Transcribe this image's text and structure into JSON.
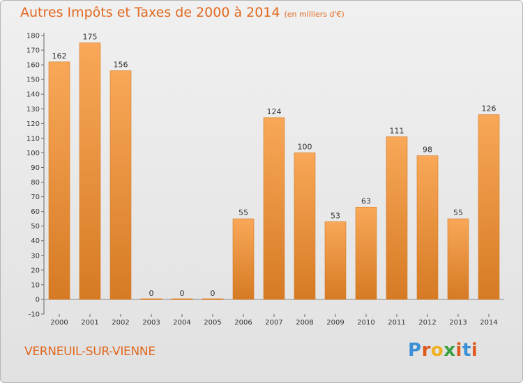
{
  "header": {
    "title": "Autres Impôts et Taxes de 2000 à 2014",
    "unit": "(en milliers d'€)"
  },
  "footer": {
    "commune": "VERNEUIL-SUR-VIENNE",
    "logo": [
      "P",
      "r",
      "o",
      "x",
      "i",
      "t",
      "i"
    ]
  },
  "colors": {
    "accent": "#e06820",
    "bar_light": "#f8a858",
    "bar_dark": "#d67a24",
    "logo": [
      "#3a8fd6",
      "#e05a20",
      "#f0b020",
      "#3aa040",
      "#e05a20",
      "#3a8fd6",
      "#e05a20"
    ]
  },
  "chart_data": {
    "type": "bar",
    "categories": [
      "2000",
      "2001",
      "2002",
      "2003",
      "2004",
      "2005",
      "2006",
      "2007",
      "2008",
      "2009",
      "2010",
      "2011",
      "2012",
      "2013",
      "2014"
    ],
    "values": [
      162,
      175,
      156,
      0,
      0,
      0,
      55,
      124,
      100,
      53,
      63,
      111,
      98,
      55,
      126
    ],
    "ylim": [
      -10,
      180
    ],
    "yticks": [
      -10,
      0,
      10,
      20,
      30,
      40,
      50,
      60,
      70,
      80,
      90,
      100,
      110,
      120,
      130,
      140,
      150,
      160,
      170,
      180
    ],
    "grid": false,
    "legend": "none"
  }
}
